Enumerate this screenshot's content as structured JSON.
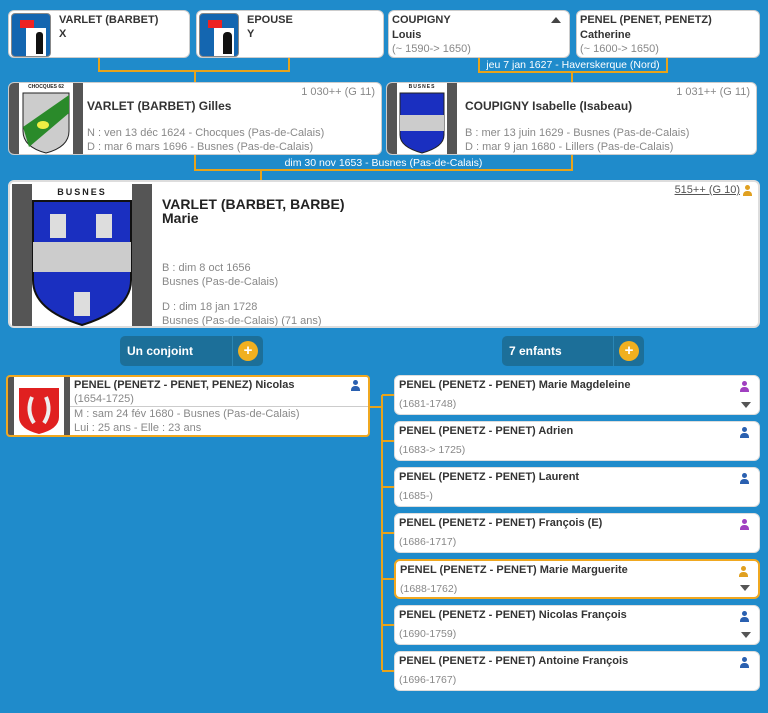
{
  "colors": {
    "background": "#1f8bcb",
    "connector": "#e8a31a",
    "male": "#2a60b0",
    "female": "#a040c0",
    "highlight": "#e0a020"
  },
  "grandparents": [
    {
      "surname": "VARLET (BARBET)",
      "given": "X",
      "icon": "unknown-man-icon"
    },
    {
      "surname": "EPOUSE",
      "given": "Y",
      "icon": "unknown-woman-icon"
    },
    {
      "surname": "COUPIGNY",
      "given": "Louis",
      "dates": "(~ 1590-> 1650)"
    },
    {
      "surname": "PENEL (PENET, PENETZ)",
      "given": "Catherine",
      "dates": "(~ 1600-> 1650)"
    }
  ],
  "grandparents_marriage": "jeu 7 jan 1627 - Haverskerque (Nord)",
  "father": {
    "sosa": "1 030++ (G 11)",
    "name": "VARLET (BARBET) Gilles",
    "birth": "N : ven 13 déc 1624 - Chocques (Pas-de-Calais)",
    "death": "D : mar 6 mars 1696 - Busnes (Pas-de-Calais)",
    "coat_label": "CHOCQUES 62"
  },
  "mother": {
    "sosa": "1 031++ (G 11)",
    "name": "COUPIGNY Isabelle (Isabeau)",
    "birth": "B : mer 13 juin 1629 - Busnes (Pas-de-Calais)",
    "death": "D : mar 9 jan 1680 - Lillers (Pas-de-Calais)",
    "coat_label": "BUSNES"
  },
  "parents_marriage": "dim 30 nov 1653 - Busnes (Pas-de-Calais)",
  "main": {
    "sosa": "515++ (G 10)",
    "surname": "VARLET (BARBET, BARBE)",
    "given": "Marie",
    "birth": "B : dim 8 oct 1656",
    "birth_place": "Busnes (Pas-de-Calais)",
    "death": "D : dim 18 jan 1728",
    "death_place": "Busnes (Pas-de-Calais) (71 ans)",
    "coat_label": "BUSNES"
  },
  "spouses_button": "Un conjoint",
  "children_button": "7 enfants",
  "spouse": {
    "name": "PENEL (PENETZ - PENET, PENEZ) Nicolas",
    "dates": "(1654-1725)",
    "marriage": "M : sam 24 fév 1680 - Busnes (Pas-de-Calais)",
    "ages": "Lui : 25 ans - Elle : 23 ans"
  },
  "children": [
    {
      "name": "PENEL (PENETZ - PENET) Marie Magdeleine",
      "dates": "(1681-1748)",
      "sex": "female",
      "expand": true
    },
    {
      "name": "PENEL (PENETZ - PENET) Adrien",
      "dates": "(1683-> 1725)",
      "sex": "male",
      "expand": false
    },
    {
      "name": "PENEL (PENETZ - PENET) Laurent",
      "dates": "(1685-)",
      "sex": "male",
      "expand": false
    },
    {
      "name": "PENEL (PENETZ - PENET) François (E)",
      "dates": "(1686-1717)",
      "sex": "female",
      "expand": false
    },
    {
      "name": "PENEL (PENETZ - PENET) Marie Marguerite",
      "dates": "(1688-1762)",
      "sex": "highlight",
      "expand": true
    },
    {
      "name": "PENEL (PENETZ - PENET) Nicolas François",
      "dates": "(1690-1759)",
      "sex": "male",
      "expand": true
    },
    {
      "name": "PENEL (PENETZ - PENET) Antoine François",
      "dates": "(1696-1767)",
      "sex": "male",
      "expand": false
    }
  ]
}
